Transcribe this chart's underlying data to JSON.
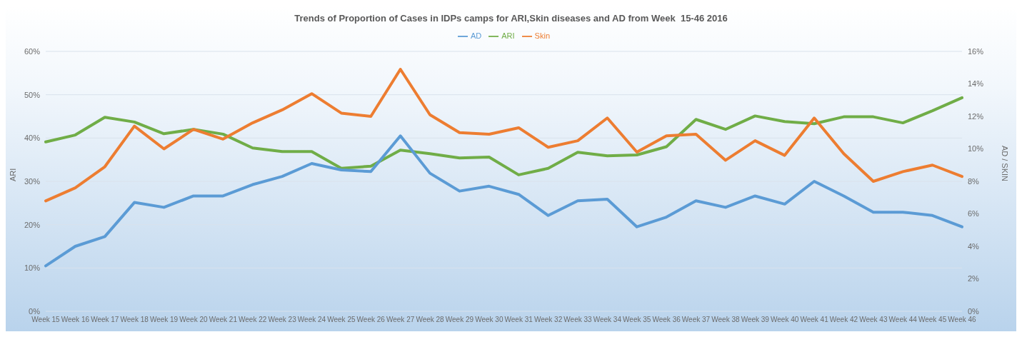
{
  "chart_data": {
    "type": "line",
    "title": "Trends of Proportion of Cases in IDPs camps for ARI,Skin diseases and AD from Week  15-46 2016",
    "ylabel": "ARI",
    "y2label": "AD / SKIN",
    "categories": [
      "Week 15",
      "Week 16",
      "Week 17",
      "Week 18",
      "Week 19",
      "Week 20",
      "Week 21",
      "Week 22",
      "Week 23",
      "Week 24",
      "Week 25",
      "Week 26",
      "Week 27",
      "Week 28",
      "Week 29",
      "Week 30",
      "Week 31",
      "Week 32",
      "Week 33",
      "Week 34",
      "Week 35",
      "Week 36",
      "Week 37",
      "Week 38",
      "Week 39",
      "Week 40",
      "Week 41",
      "Week 42",
      "Week 43",
      "Week 44",
      "Week 45",
      "Week 46"
    ],
    "series": [
      {
        "name": "ARI",
        "color": "#70ad47",
        "values": [
          39.1,
          40.7,
          44.8,
          43.7,
          41,
          42,
          40.9,
          37.7,
          36.9,
          36.9,
          33,
          33.5,
          37.2,
          36.4,
          35.4,
          35.6,
          31.5,
          33,
          36.7,
          35.9,
          36.1,
          38,
          44.3,
          42,
          45.1,
          43.8,
          43.3,
          44.9,
          44.9,
          43.5,
          46.3,
          49.3
        ]
      },
      {
        "name": "AD",
        "color": "#5b9bd5",
        "axis": "y2",
        "values": [
          2.8,
          4,
          4.6,
          6.7,
          6.4,
          7.1,
          7.1,
          7.8,
          8.3,
          9.1,
          8.7,
          8.6,
          10.8,
          8.5,
          7.4,
          7.7,
          7.2,
          5.9,
          6.8,
          6.9,
          5.2,
          5.8,
          6.8,
          6.4,
          7.1,
          6.6,
          8,
          7.1,
          6.1,
          6.1,
          5.9,
          5.2
        ]
      },
      {
        "name": "Skin",
        "color": "#ed7d31",
        "axis": "y2",
        "values": [
          6.8,
          7.6,
          8.9,
          11.4,
          10,
          11.2,
          10.6,
          11.6,
          12.4,
          13.4,
          12.2,
          12,
          14.9,
          12.1,
          11,
          10.9,
          11.3,
          10.1,
          10.5,
          11.9,
          9.8,
          10.8,
          10.9,
          9.3,
          10.5,
          9.6,
          11.9,
          9.7,
          8,
          8.6,
          9,
          8.3
        ]
      }
    ],
    "ylim": [
      0,
      60
    ],
    "yticks": [
      {
        "value": 0,
        "label": "0%"
      },
      {
        "value": 10,
        "label": "10%"
      },
      {
        "value": 20,
        "label": "20%"
      },
      {
        "value": 30,
        "label": "30%"
      },
      {
        "value": 40,
        "label": "40%"
      },
      {
        "value": 50,
        "label": "50%"
      },
      {
        "value": 60,
        "label": "60%"
      }
    ],
    "y2lim": [
      0,
      16
    ],
    "y2ticks": [
      {
        "value": 0,
        "label": "0%"
      },
      {
        "value": 2,
        "label": "2%"
      },
      {
        "value": 4,
        "label": "4%"
      },
      {
        "value": 6,
        "label": "6%"
      },
      {
        "value": 8,
        "label": "8%"
      },
      {
        "value": 10,
        "label": "10%"
      },
      {
        "value": 12,
        "label": "12%"
      },
      {
        "value": 14,
        "label": "14%"
      },
      {
        "value": 16,
        "label": "16%"
      }
    ],
    "grid": "y",
    "legend": "top",
    "marker": "none",
    "line_style": "solid"
  }
}
